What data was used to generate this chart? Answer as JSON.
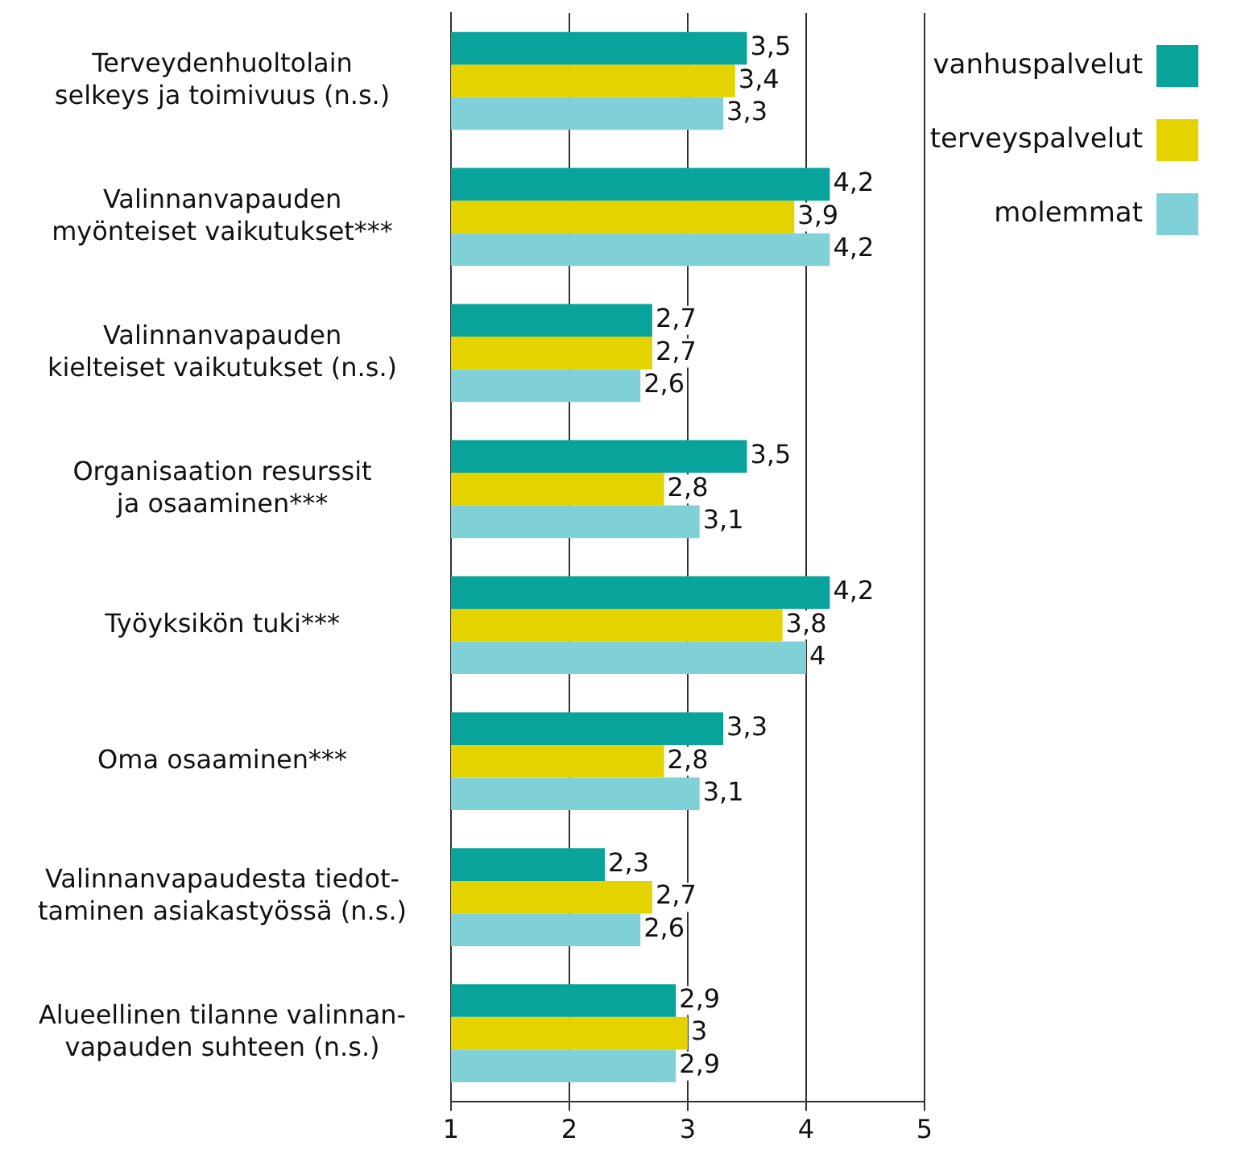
{
  "chart_data": {
    "type": "bar",
    "orientation": "horizontal",
    "categories": [
      "Terveydenhuoltolain\nselkeys ja toimivuus (n.s.)",
      "Valinnanvapauden\nmyönteiset vaikutukset***",
      "Valinnanvapauden\nkielteiset vaikutukset (n.s.)",
      "Organisaation resurssit\nja osaaminen***",
      "Työyksikön tuki***",
      "Oma osaaminen***",
      "Valinnanvapaudesta tiedot-\ntaminen asiakastyössä (n.s.)",
      "Alueellinen tilanne valinnan-\nvapauden suhteen (n.s.)"
    ],
    "series": [
      {
        "name": "vanhuspalvelut",
        "color": "#08a39a",
        "values": [
          3.5,
          4.2,
          2.7,
          3.5,
          4.2,
          3.3,
          2.3,
          2.9
        ],
        "value_labels": [
          "3,5",
          "4,2",
          "2,7",
          "3,5",
          "4,2",
          "3,3",
          "2,3",
          "2,9"
        ]
      },
      {
        "name": "terveyspalvelut",
        "color": "#e5d300",
        "values": [
          3.4,
          3.9,
          2.7,
          2.8,
          3.8,
          2.8,
          2.7,
          3
        ],
        "value_labels": [
          "3,4",
          "3,9",
          "2,7",
          "2,8",
          "3,8",
          "2,8",
          "2,7",
          "3"
        ]
      },
      {
        "name": "molemmat",
        "color": "#80d0d8",
        "values": [
          3.3,
          4.2,
          2.6,
          3.1,
          4,
          3.1,
          2.6,
          2.9
        ],
        "value_labels": [
          "3,3",
          "4,2",
          "2,6",
          "3,1",
          "4",
          "3,1",
          "2,6",
          "2,9"
        ]
      }
    ],
    "xlim": [
      1,
      5
    ],
    "xticks": [
      1,
      2,
      3,
      4,
      5
    ],
    "grid": "x",
    "legend": "top right"
  }
}
